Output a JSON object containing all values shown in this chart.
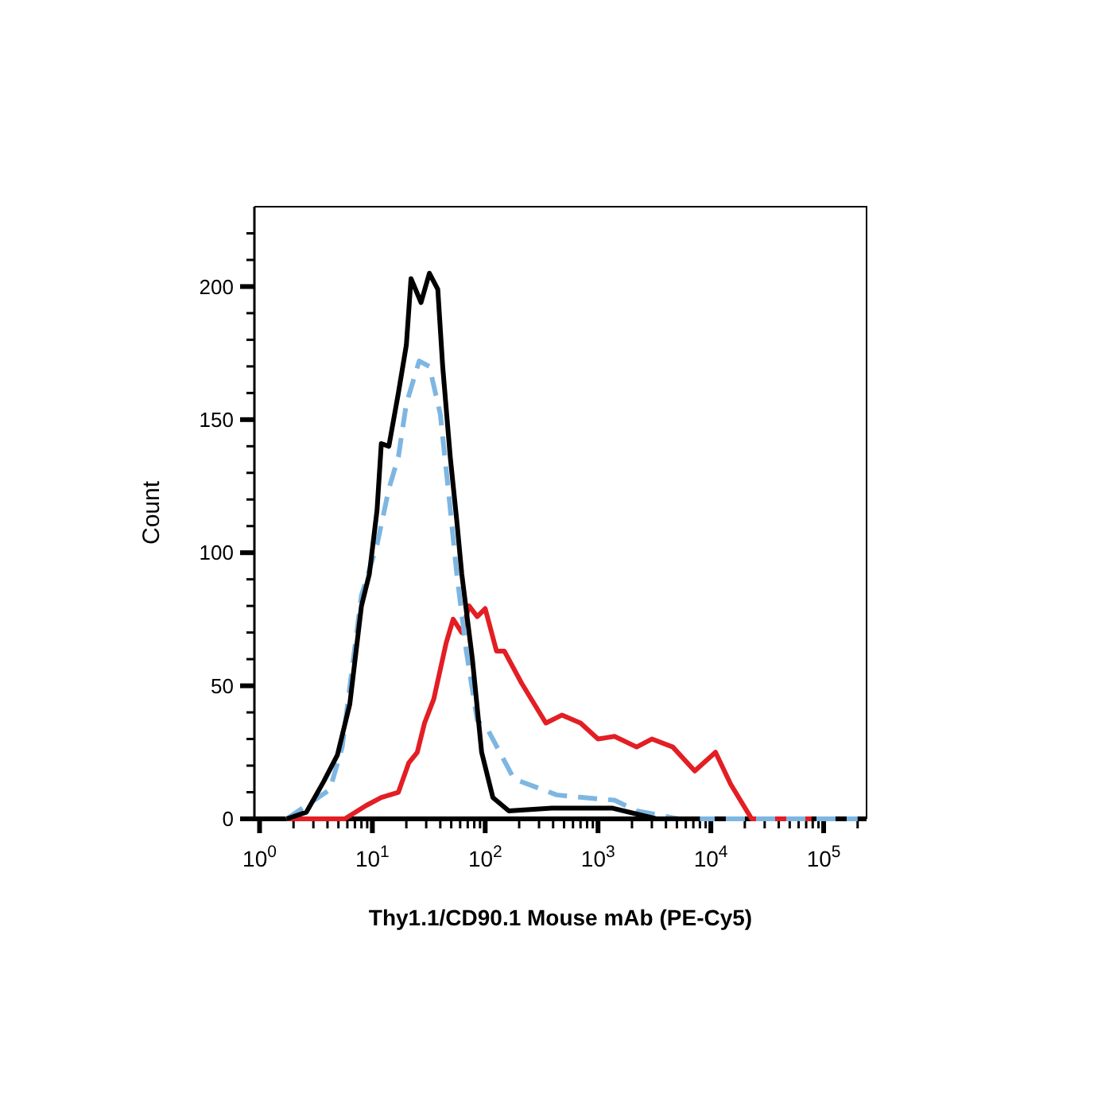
{
  "chart_data": {
    "type": "line",
    "xlabel": "Thy1.1/CD90.1 Mouse mAb (PE-Cy5)",
    "ylabel": "Count",
    "log": "x",
    "grid": false,
    "xlim": [
      0.9,
      240000
    ],
    "ylim": [
      0,
      230
    ],
    "xticks": [
      {
        "value": 1,
        "label": "10$^{0}$"
      },
      {
        "value": 2,
        "label": null
      },
      {
        "value": 3,
        "label": null
      },
      {
        "value": 4,
        "label": null
      },
      {
        "value": 5,
        "label": null
      },
      {
        "value": 6,
        "label": null
      },
      {
        "value": 7,
        "label": null
      },
      {
        "value": 8,
        "label": null
      },
      {
        "value": 9,
        "label": null
      },
      {
        "value": 10,
        "label": "10$^{1}$"
      },
      {
        "value": 20,
        "label": null
      },
      {
        "value": 30,
        "label": null
      },
      {
        "value": 40,
        "label": null
      },
      {
        "value": 50,
        "label": null
      },
      {
        "value": 60,
        "label": null
      },
      {
        "value": 70,
        "label": null
      },
      {
        "value": 80,
        "label": null
      },
      {
        "value": 90,
        "label": null
      },
      {
        "value": 100,
        "label": "10$^{2}$"
      },
      {
        "value": 200,
        "label": null
      },
      {
        "value": 300,
        "label": null
      },
      {
        "value": 400,
        "label": null
      },
      {
        "value": 500,
        "label": null
      },
      {
        "value": 600,
        "label": null
      },
      {
        "value": 700,
        "label": null
      },
      {
        "value": 800,
        "label": null
      },
      {
        "value": 900,
        "label": null
      },
      {
        "value": 1000,
        "label": "10$^{3}$"
      },
      {
        "value": 2000,
        "label": null
      },
      {
        "value": 3000,
        "label": null
      },
      {
        "value": 4000,
        "label": null
      },
      {
        "value": 5000,
        "label": null
      },
      {
        "value": 6000,
        "label": null
      },
      {
        "value": 7000,
        "label": null
      },
      {
        "value": 8000,
        "label": null
      },
      {
        "value": 9000,
        "label": null
      },
      {
        "value": 10000,
        "label": "10$^{4}$"
      },
      {
        "value": 20000,
        "label": null
      },
      {
        "value": 30000,
        "label": null
      },
      {
        "value": 40000,
        "label": null
      },
      {
        "value": 50000,
        "label": null
      },
      {
        "value": 60000,
        "label": null
      },
      {
        "value": 70000,
        "label": null
      },
      {
        "value": 80000,
        "label": null
      },
      {
        "value": 90000,
        "label": null
      },
      {
        "value": 100000,
        "label": "10$^{5}$"
      },
      {
        "value": 200000,
        "label": null
      }
    ],
    "yticks": [
      0,
      {
        "value": 10,
        "label": null
      },
      {
        "value": 20,
        "label": null
      },
      {
        "value": 30,
        "label": null
      },
      {
        "value": 40,
        "label": null
      },
      50,
      {
        "value": 60,
        "label": null
      },
      {
        "value": 70,
        "label": null
      },
      {
        "value": 80,
        "label": null
      },
      {
        "value": 90,
        "label": null
      },
      100,
      {
        "value": 110,
        "label": null
      },
      {
        "value": 120,
        "label": null
      },
      {
        "value": 130,
        "label": null
      },
      {
        "value": 140,
        "label": null
      },
      150,
      {
        "value": 160,
        "label": null
      },
      {
        "value": 170,
        "label": null
      },
      {
        "value": 180,
        "label": null
      },
      {
        "value": 190,
        "label": null
      },
      200,
      {
        "value": 210,
        "label": null
      },
      {
        "value": 220,
        "label": null
      }
    ],
    "series": [
      {
        "color": "#e31e24",
        "line_style": "solid",
        "x": [
          1.74,
          5.7,
          8.8,
          12,
          17,
          21,
          25,
          29,
          35,
          45,
          52,
          62,
          72,
          85,
          100,
          126,
          148,
          210,
          345,
          480,
          700,
          1000,
          1400,
          2200,
          3000,
          4600,
          7200,
          11000,
          15000,
          23000,
          78000
        ],
        "values": [
          0,
          0,
          5,
          8,
          10,
          21,
          25,
          36,
          45,
          66,
          75,
          70,
          80,
          76,
          79,
          63,
          63,
          51,
          36,
          39,
          36,
          30,
          31,
          27,
          30,
          27,
          18,
          25,
          13,
          0,
          0
        ]
      },
      {
        "color": "#7eb6e2",
        "line_style": "dashed",
        "x": [
          1.74,
          4.2,
          5.4,
          8,
          11,
          14,
          17,
          20,
          26,
          32,
          40,
          47,
          56,
          68,
          85,
          107,
          180,
          430,
          750,
          1400,
          2200,
          5200,
          200000
        ],
        "values": [
          0,
          11,
          27,
          84,
          103,
          124,
          136,
          156,
          172,
          170,
          152,
          124,
          92,
          63,
          37,
          33,
          15,
          9,
          8,
          7,
          3,
          0,
          0
        ]
      },
      {
        "color": "#000000",
        "line_style": "solid",
        "x": [
          1.74,
          2.6,
          3.7,
          4.9,
          6.3,
          8,
          9.4,
          11,
          12,
          14,
          17,
          20,
          22,
          27,
          32,
          38,
          42,
          49,
          56,
          62,
          77,
          93,
          117,
          162,
          390,
          1000,
          1350,
          3300,
          8000
        ],
        "values": [
          0,
          2.5,
          14,
          24,
          43,
          80,
          92,
          116,
          141,
          140,
          160,
          178,
          203,
          194,
          205,
          199,
          170,
          136,
          112,
          92,
          60,
          25,
          8,
          3,
          4,
          4,
          4,
          0,
          0
        ]
      }
    ]
  }
}
